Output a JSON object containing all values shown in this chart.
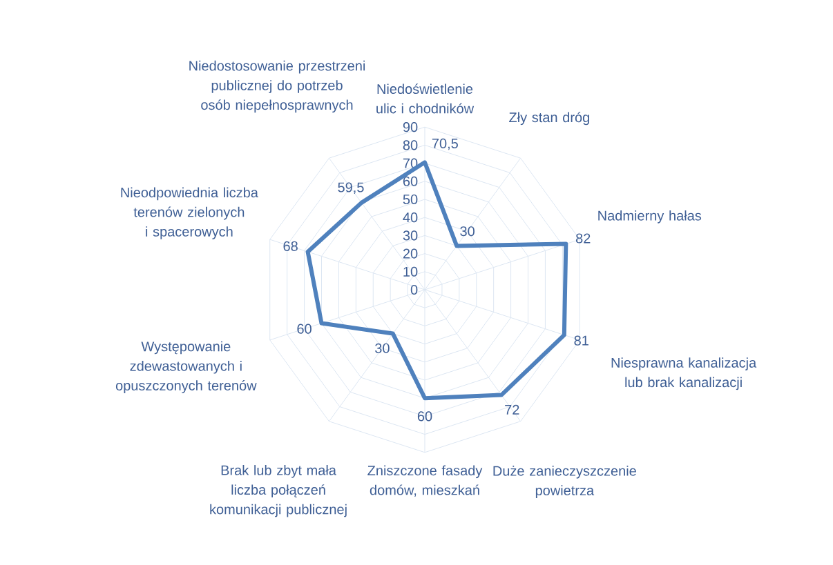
{
  "chart_data": {
    "type": "radar",
    "categories": [
      "Niedoświetlenie ulic i chodników",
      "Zły stan dróg",
      "Nadmierny hałas",
      "Niesprawna kanalizacja lub brak kanalizacji",
      "Duże zanieczyszczenie powietrza",
      "Zniszczone fasady domów, mieszkań",
      "Brak lub zbyt mała liczba połączeń komunikacji publicznej",
      "Występowanie zdewastowanych i opuszczonych terenów",
      "Nieodpowiednia liczba terenów zielonych i spacerowych",
      "Niedostosowanie przestrzeni publicznej do potrzeb osób niepełnosprawnych"
    ],
    "series": [
      {
        "color": "#4f81bd",
        "values": [
          70.5,
          30,
          82,
          81,
          72,
          60,
          30,
          60,
          68,
          59.5
        ],
        "value_labels": [
          "70,5",
          "30",
          "82",
          "81",
          "72",
          "60",
          "30",
          "60",
          "68",
          "59,5"
        ]
      }
    ],
    "ylim": [
      0,
      90
    ],
    "yticks": [
      0,
      10,
      20,
      30,
      40,
      50,
      60,
      70,
      80,
      90
    ],
    "grid": true
  }
}
